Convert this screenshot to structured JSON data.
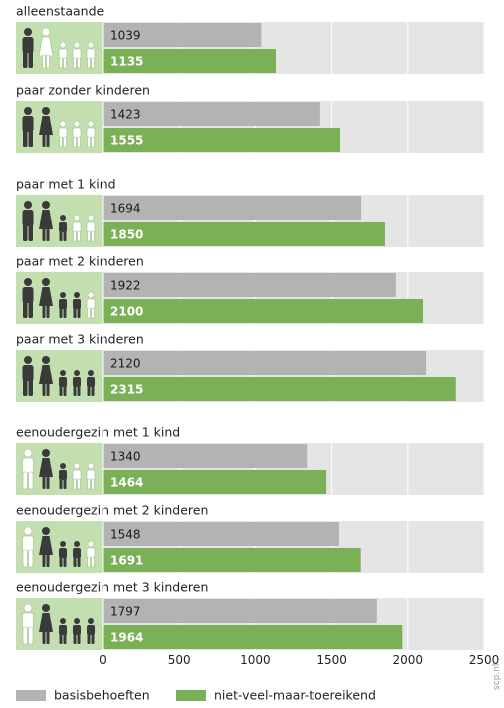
{
  "chart_data": {
    "type": "bar",
    "orientation": "horizontal",
    "categories": [
      "alleenstaande",
      "paar zonder kinderen",
      "paar met 1 kind",
      "paar met 2 kinderen",
      "paar met 3 kinderen",
      "eenoudergezin met 1 kind",
      "eenoudergezin met 2 kinderen",
      "eenoudergezin met 3 kinderen"
    ],
    "series": [
      {
        "name": "basisbehoeften",
        "values": [
          1039,
          1423,
          1694,
          1922,
          2120,
          1340,
          1548,
          1797
        ]
      },
      {
        "name": "niet-veel-maar-toereikend",
        "values": [
          1135,
          1555,
          1850,
          2100,
          2315,
          1464,
          1691,
          1964
        ]
      }
    ],
    "xlim": [
      0,
      2500
    ],
    "xticks": [
      "0",
      "500",
      "1000",
      "1500",
      "2000",
      "2500"
    ],
    "grid": true,
    "legend_position": "bottom",
    "colors": {
      "basisbehoeften": "#b3b3b3",
      "niet-veel-maar-toereikend": "#7ab157",
      "track": "#e5e5e5",
      "icon_panel": "#c3dfb0",
      "person_dark": "#3a3a3a",
      "person_light": "#ffffff"
    },
    "household_icons": [
      {
        "category": "alleenstaande",
        "figures": [
          "man-dark",
          "woman-light",
          "child-light",
          "child-light",
          "child-light"
        ]
      },
      {
        "category": "paar zonder kinderen",
        "figures": [
          "man-dark",
          "woman-dark",
          "child-light",
          "child-light",
          "child-light"
        ]
      },
      {
        "category": "paar met 1 kind",
        "figures": [
          "man-dark",
          "woman-dark",
          "child-dark",
          "child-light",
          "child-light"
        ]
      },
      {
        "category": "paar met 2 kinderen",
        "figures": [
          "man-dark",
          "woman-dark",
          "child-dark",
          "child-dark",
          "child-light"
        ]
      },
      {
        "category": "paar met 3 kinderen",
        "figures": [
          "man-dark",
          "woman-dark",
          "child-dark",
          "child-dark",
          "child-dark"
        ]
      },
      {
        "category": "eenoudergezin met 1 kind",
        "figures": [
          "man-light",
          "woman-dark",
          "child-dark",
          "child-light",
          "child-light"
        ]
      },
      {
        "category": "eenoudergezin met 2 kinderen",
        "figures": [
          "man-light",
          "woman-dark",
          "child-dark",
          "child-dark",
          "child-light"
        ]
      },
      {
        "category": "eenoudergezin met 3 kinderen",
        "figures": [
          "man-light",
          "woman-dark",
          "child-dark",
          "child-dark",
          "child-dark"
        ]
      }
    ],
    "source_credit": "scp.nl"
  }
}
